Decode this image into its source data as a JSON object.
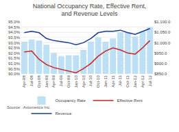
{
  "chart_data": {
    "type": "bar",
    "title": "National Occupancy Rate, Effective Rent,\nand Revenue Levels",
    "annotations": [
      "Source:  Axiometics Inc."
    ],
    "categories": [
      "Apr-08",
      "Jul-08",
      "Oct-08",
      "Jan-09",
      "Apr-09",
      "Jul-09",
      "Oct-09",
      "Jan-10",
      "Apr-10",
      "Jul-10",
      "Oct-10",
      "Jan-11",
      "Apr-11",
      "Jul-11",
      "Oct-11",
      "Jan-12",
      "Apr-12",
      "Jul-12"
    ],
    "series": [
      {
        "name": "Occupancy Rate",
        "type": "bar",
        "color": "#bde0f5",
        "values": [
          93.1,
          93.3,
          93.2,
          92.8,
          92.0,
          91.7,
          91.8,
          91.8,
          92.3,
          93.1,
          93.5,
          93.1,
          93.4,
          94.0,
          94.0,
          93.6,
          94.1,
          94.5
        ]
      },
      {
        "name": "Effective Rent",
        "type": "line",
        "color": "#cc2222",
        "axis": "y2",
        "values": [
          955,
          960,
          920,
          895,
          880,
          872,
          865,
          855,
          875,
          900,
          935,
          960,
          975,
          965,
          950,
          945,
          975,
          1010
        ]
      },
      {
        "name": "Revenue",
        "type": "line",
        "color": "#1a3a8f",
        "axis": "y2",
        "values": [
          1048,
          1055,
          1048,
          1020,
          1010,
          1005,
          1000,
          990,
          1000,
          1020,
          1048,
          1055,
          1055,
          1060,
          1048,
          1040,
          1055,
          1068
        ]
      }
    ],
    "ylim": [
      90.0,
      95.0
    ],
    "yticks": [
      {
        "value": 90.0,
        "label": "90.0%"
      },
      {
        "value": 90.5,
        "label": "90.5%"
      },
      {
        "value": 91.0,
        "label": "91.0%"
      },
      {
        "value": 91.5,
        "label": "91.5%"
      },
      {
        "value": 92.0,
        "label": "92.0%"
      },
      {
        "value": 92.5,
        "label": "92.5%"
      },
      {
        "value": 93.0,
        "label": "93.0%"
      },
      {
        "value": 93.5,
        "label": "93.5%"
      },
      {
        "value": 94.0,
        "label": "94.0%"
      },
      {
        "value": 94.5,
        "label": "94.5%"
      },
      {
        "value": 95.0,
        "label": "95.0%"
      }
    ],
    "y2lim": [
      850,
      1100
    ],
    "y2ticks": [
      {
        "value": 850,
        "label": "$850.0"
      },
      {
        "value": 900,
        "label": "$900.0"
      },
      {
        "value": 950,
        "label": "$950.0"
      },
      {
        "value": 1000,
        "label": "$1,000.0"
      },
      {
        "value": 1050,
        "label": "$1,050.0"
      },
      {
        "value": 1100,
        "label": "$1,100.0"
      }
    ],
    "grid": true,
    "legend": "bottom"
  }
}
